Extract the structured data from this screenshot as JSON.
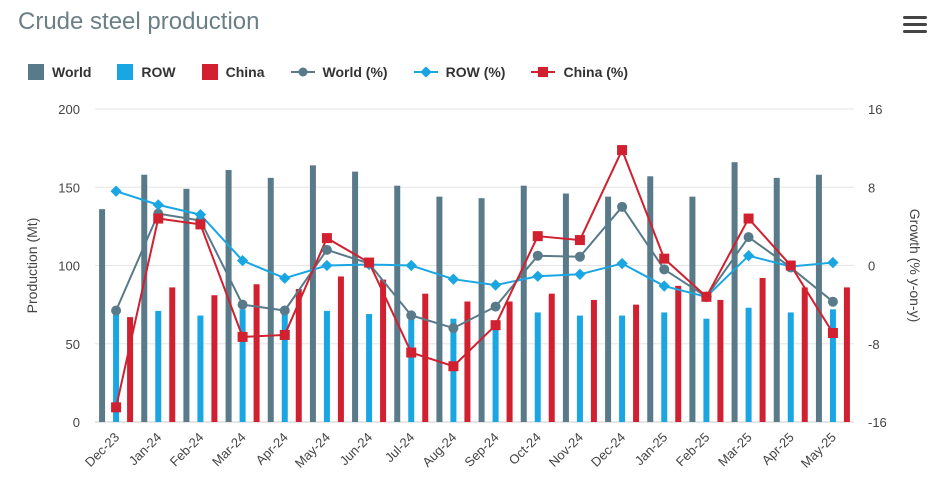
{
  "title": "Crude steel production",
  "menu_icon": "hamburger-menu-icon",
  "colors": {
    "world": "#587a89",
    "row": "#1aa6e2",
    "china": "#d1202f",
    "grid": "#e6e6e6",
    "axis_text": "#444444"
  },
  "chart_data": {
    "type": "bar",
    "title": "Crude steel production",
    "categories": [
      "Dec-23",
      "Jan-24",
      "Feb-24",
      "Mar-24",
      "Apr-24",
      "May-24",
      "Jun-24",
      "Jul-24",
      "Aug-24",
      "Sep-24",
      "Oct-24",
      "Nov-24",
      "Dec-24",
      "Jan-25",
      "Feb-25",
      "Mar-25",
      "Apr-25",
      "May-25"
    ],
    "ylabel": "Production (Mt)",
    "ylim": [
      0,
      200
    ],
    "yticks": [
      0,
      50,
      100,
      150,
      200
    ],
    "y2label": "Growth (% y-on-y)",
    "y2lim": [
      -16,
      16
    ],
    "y2ticks": [
      -16,
      -8,
      0,
      8,
      16
    ],
    "legend_position": "top-left",
    "grid": true,
    "bar_series": [
      {
        "name": "World",
        "values": [
          136,
          158,
          149,
          161,
          156,
          164,
          160,
          151,
          144,
          143,
          151,
          146,
          144,
          157,
          144,
          166,
          156,
          158
        ]
      },
      {
        "name": "ROW",
        "values": [
          69,
          71,
          68,
          72,
          73,
          71,
          69,
          69,
          66,
          64,
          70,
          68,
          68,
          70,
          66,
          73,
          70,
          72
        ]
      },
      {
        "name": "China",
        "values": [
          67,
          86,
          81,
          88,
          85,
          93,
          91,
          82,
          77,
          77,
          82,
          78,
          75,
          87,
          78,
          92,
          86,
          86
        ]
      }
    ],
    "line_series": [
      {
        "name": "World (%)",
        "values": [
          -4.6,
          5.3,
          4.6,
          -4.0,
          -4.6,
          1.6,
          0.2,
          -5.1,
          -6.4,
          -4.2,
          1.0,
          0.9,
          6.0,
          -0.4,
          -3.2,
          2.9,
          -0.2,
          -3.7
        ]
      },
      {
        "name": "ROW (%)",
        "values": [
          7.6,
          6.2,
          5.2,
          0.5,
          -1.3,
          0.0,
          0.1,
          0.0,
          -1.4,
          -2.0,
          -1.1,
          -0.9,
          0.2,
          -2.1,
          -3.2,
          1.0,
          -0.1,
          0.3
        ]
      },
      {
        "name": "China (%)",
        "values": [
          -14.5,
          4.8,
          4.2,
          -7.3,
          -7.1,
          2.8,
          0.3,
          -8.9,
          -10.3,
          -6.1,
          3.0,
          2.6,
          11.8,
          0.7,
          -3.2,
          4.8,
          0.0,
          -6.9
        ]
      }
    ]
  }
}
